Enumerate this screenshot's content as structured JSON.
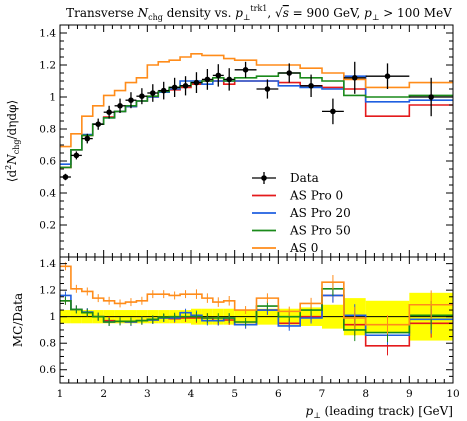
{
  "chart_data": [
    {
      "panel": "main",
      "type": "line",
      "title": "Transverse N_chg density vs. p_⊥^trk1, √s = 900 GeV, p_⊥ > 100 MeV",
      "title_parts": {
        "lead": "Transverse ",
        "n": "N",
        "n_sub": "chg",
        "mid": " density vs. ",
        "p": "p",
        "p_sub": "⊥",
        "p_sup": "trk1",
        "sqrt": ", √",
        "s": "s",
        "energy": " = 900 GeV, ",
        "p2": "p",
        "p2_sub": "⊥",
        "cut": " > 100 MeV"
      },
      "xlabel": "p⊥ (leading track) [GeV]",
      "xlabel_parts": {
        "p": "p",
        "sub": "⊥",
        "rest": " (leading track) [GeV]"
      },
      "ylabel": "⟨d²N_chg/dηdφ⟩",
      "ylabel_parts": {
        "pre": "⟨d",
        "sup": "2",
        "n": "N",
        "sub": "chg",
        "post": "/dηdφ⟩"
      },
      "xlim": [
        1,
        10
      ],
      "ylim": [
        0,
        1.45
      ],
      "y_ticks": [
        "0.2",
        "0.4",
        "0.6",
        "0.8",
        "1",
        "1.2",
        "1.4"
      ],
      "y_tick_values": [
        0.2,
        0.4,
        0.6,
        0.8,
        1.0,
        1.2,
        1.4
      ],
      "legend_position": "center-right",
      "bin_edges": [
        1.0,
        1.25,
        1.5,
        1.75,
        2.0,
        2.25,
        2.5,
        2.75,
        3.0,
        3.25,
        3.5,
        3.75,
        4.0,
        4.25,
        4.5,
        4.75,
        5.0,
        5.5,
        6.0,
        6.5,
        7.0,
        7.5,
        8.0,
        9.0,
        10.0
      ],
      "data": {
        "name": "Data",
        "x": [
          1.125,
          1.375,
          1.625,
          1.875,
          2.125,
          2.375,
          2.625,
          2.875,
          3.125,
          3.375,
          3.625,
          3.875,
          4.125,
          4.375,
          4.625,
          4.875,
          5.25,
          5.75,
          6.25,
          6.75,
          7.25,
          7.75,
          8.5,
          9.5
        ],
        "y": [
          0.5,
          0.635,
          0.74,
          0.83,
          0.905,
          0.945,
          0.98,
          1.005,
          1.025,
          1.04,
          1.06,
          1.07,
          1.09,
          1.11,
          1.135,
          1.11,
          1.17,
          1.05,
          1.15,
          1.07,
          0.91,
          1.12,
          1.13,
          1.0
        ],
        "yerr": [
          0.02,
          0.025,
          0.03,
          0.035,
          0.04,
          0.045,
          0.05,
          0.05,
          0.055,
          0.055,
          0.06,
          0.06,
          0.065,
          0.065,
          0.07,
          0.07,
          0.05,
          0.06,
          0.06,
          0.07,
          0.08,
          0.1,
          0.08,
          0.12
        ]
      },
      "series": [
        {
          "name": "AS Pro 0",
          "color": "#e41a1c",
          "values": [
            0.56,
            0.67,
            0.76,
            0.83,
            0.875,
            0.91,
            0.94,
            0.975,
            1.0,
            1.03,
            1.045,
            1.06,
            1.08,
            1.1,
            1.1,
            1.08,
            1.1,
            1.1,
            1.09,
            1.07,
            1.06,
            1.05,
            0.88,
            0.95
          ]
        },
        {
          "name": "AS Pro 20",
          "color": "#1f5fe0",
          "values": [
            0.58,
            0.67,
            0.765,
            0.83,
            0.87,
            0.91,
            0.94,
            0.975,
            1.0,
            1.03,
            1.05,
            1.1,
            1.1,
            1.08,
            1.1,
            1.1,
            1.1,
            1.1,
            1.07,
            1.06,
            1.05,
            1.13,
            0.97,
            0.98
          ]
        },
        {
          "name": "AS Pro 50",
          "color": "#1a8a1a",
          "values": [
            0.56,
            0.67,
            0.76,
            0.83,
            0.87,
            0.91,
            0.945,
            0.975,
            1.005,
            1.035,
            1.06,
            1.07,
            1.09,
            1.1,
            1.12,
            1.1,
            1.12,
            1.13,
            1.15,
            1.12,
            1.1,
            1.01,
            1.0,
            1.01
          ]
        },
        {
          "name": "AS 0",
          "color": "#ff8c1a",
          "values": [
            0.69,
            0.77,
            0.88,
            0.945,
            1.01,
            1.04,
            1.09,
            1.12,
            1.2,
            1.22,
            1.23,
            1.25,
            1.27,
            1.26,
            1.26,
            1.24,
            1.23,
            1.2,
            1.2,
            1.18,
            1.15,
            1.11,
            1.06,
            1.09
          ]
        }
      ]
    },
    {
      "panel": "ratio",
      "type": "line",
      "ylabel": "MC/Data",
      "xlabel": "p⊥ (leading track) [GeV]",
      "xlim": [
        1,
        10
      ],
      "ylim": [
        0.5,
        1.45
      ],
      "x_ticks": [
        "1",
        "2",
        "3",
        "4",
        "5",
        "6",
        "7",
        "8",
        "9",
        "10"
      ],
      "x_tick_values": [
        1,
        2,
        3,
        4,
        5,
        6,
        7,
        8,
        9,
        10
      ],
      "y_ticks": [
        "0.6",
        "0.8",
        "1",
        "1.2",
        "1.4"
      ],
      "y_tick_values": [
        0.6,
        0.8,
        1.0,
        1.2,
        1.4
      ],
      "band_color": "#ffff00",
      "band_halfwidth": [
        0.05,
        0.05,
        0.05,
        0.05,
        0.05,
        0.05,
        0.05,
        0.05,
        0.05,
        0.05,
        0.05,
        0.05,
        0.06,
        0.06,
        0.06,
        0.06,
        0.05,
        0.06,
        0.06,
        0.07,
        0.09,
        0.14,
        0.12,
        0.18
      ],
      "series": [
        {
          "name": "AS Pro 0",
          "values": [
            1.12,
            1.055,
            1.03,
            1.0,
            0.97,
            0.965,
            0.96,
            0.97,
            0.975,
            0.99,
            0.985,
            0.99,
            0.99,
            0.99,
            0.97,
            0.975,
            0.94,
            1.05,
            0.95,
            1.0,
            1.16,
            0.94,
            0.78,
            0.95
          ]
        },
        {
          "name": "AS Pro 20",
          "values": [
            1.16,
            1.055,
            1.035,
            1.0,
            0.96,
            0.965,
            0.96,
            0.97,
            0.975,
            0.99,
            0.99,
            1.03,
            1.01,
            0.97,
            0.97,
            0.99,
            0.94,
            1.05,
            0.93,
            0.99,
            1.16,
            1.01,
            0.86,
            0.98
          ]
        },
        {
          "name": "AS Pro 50",
          "values": [
            1.12,
            1.055,
            1.03,
            1.0,
            0.96,
            0.965,
            0.965,
            0.97,
            0.98,
            0.995,
            1.0,
            1.0,
            1.0,
            0.99,
            0.99,
            0.99,
            0.96,
            1.08,
            1.0,
            1.05,
            1.21,
            0.9,
            0.88,
            1.01
          ]
        },
        {
          "name": "AS 0",
          "values": [
            1.38,
            1.21,
            1.19,
            1.14,
            1.12,
            1.1,
            1.11,
            1.12,
            1.17,
            1.17,
            1.16,
            1.17,
            1.17,
            1.14,
            1.11,
            1.12,
            1.05,
            1.14,
            1.04,
            1.1,
            1.26,
            0.99,
            0.94,
            1.09
          ]
        }
      ]
    }
  ]
}
